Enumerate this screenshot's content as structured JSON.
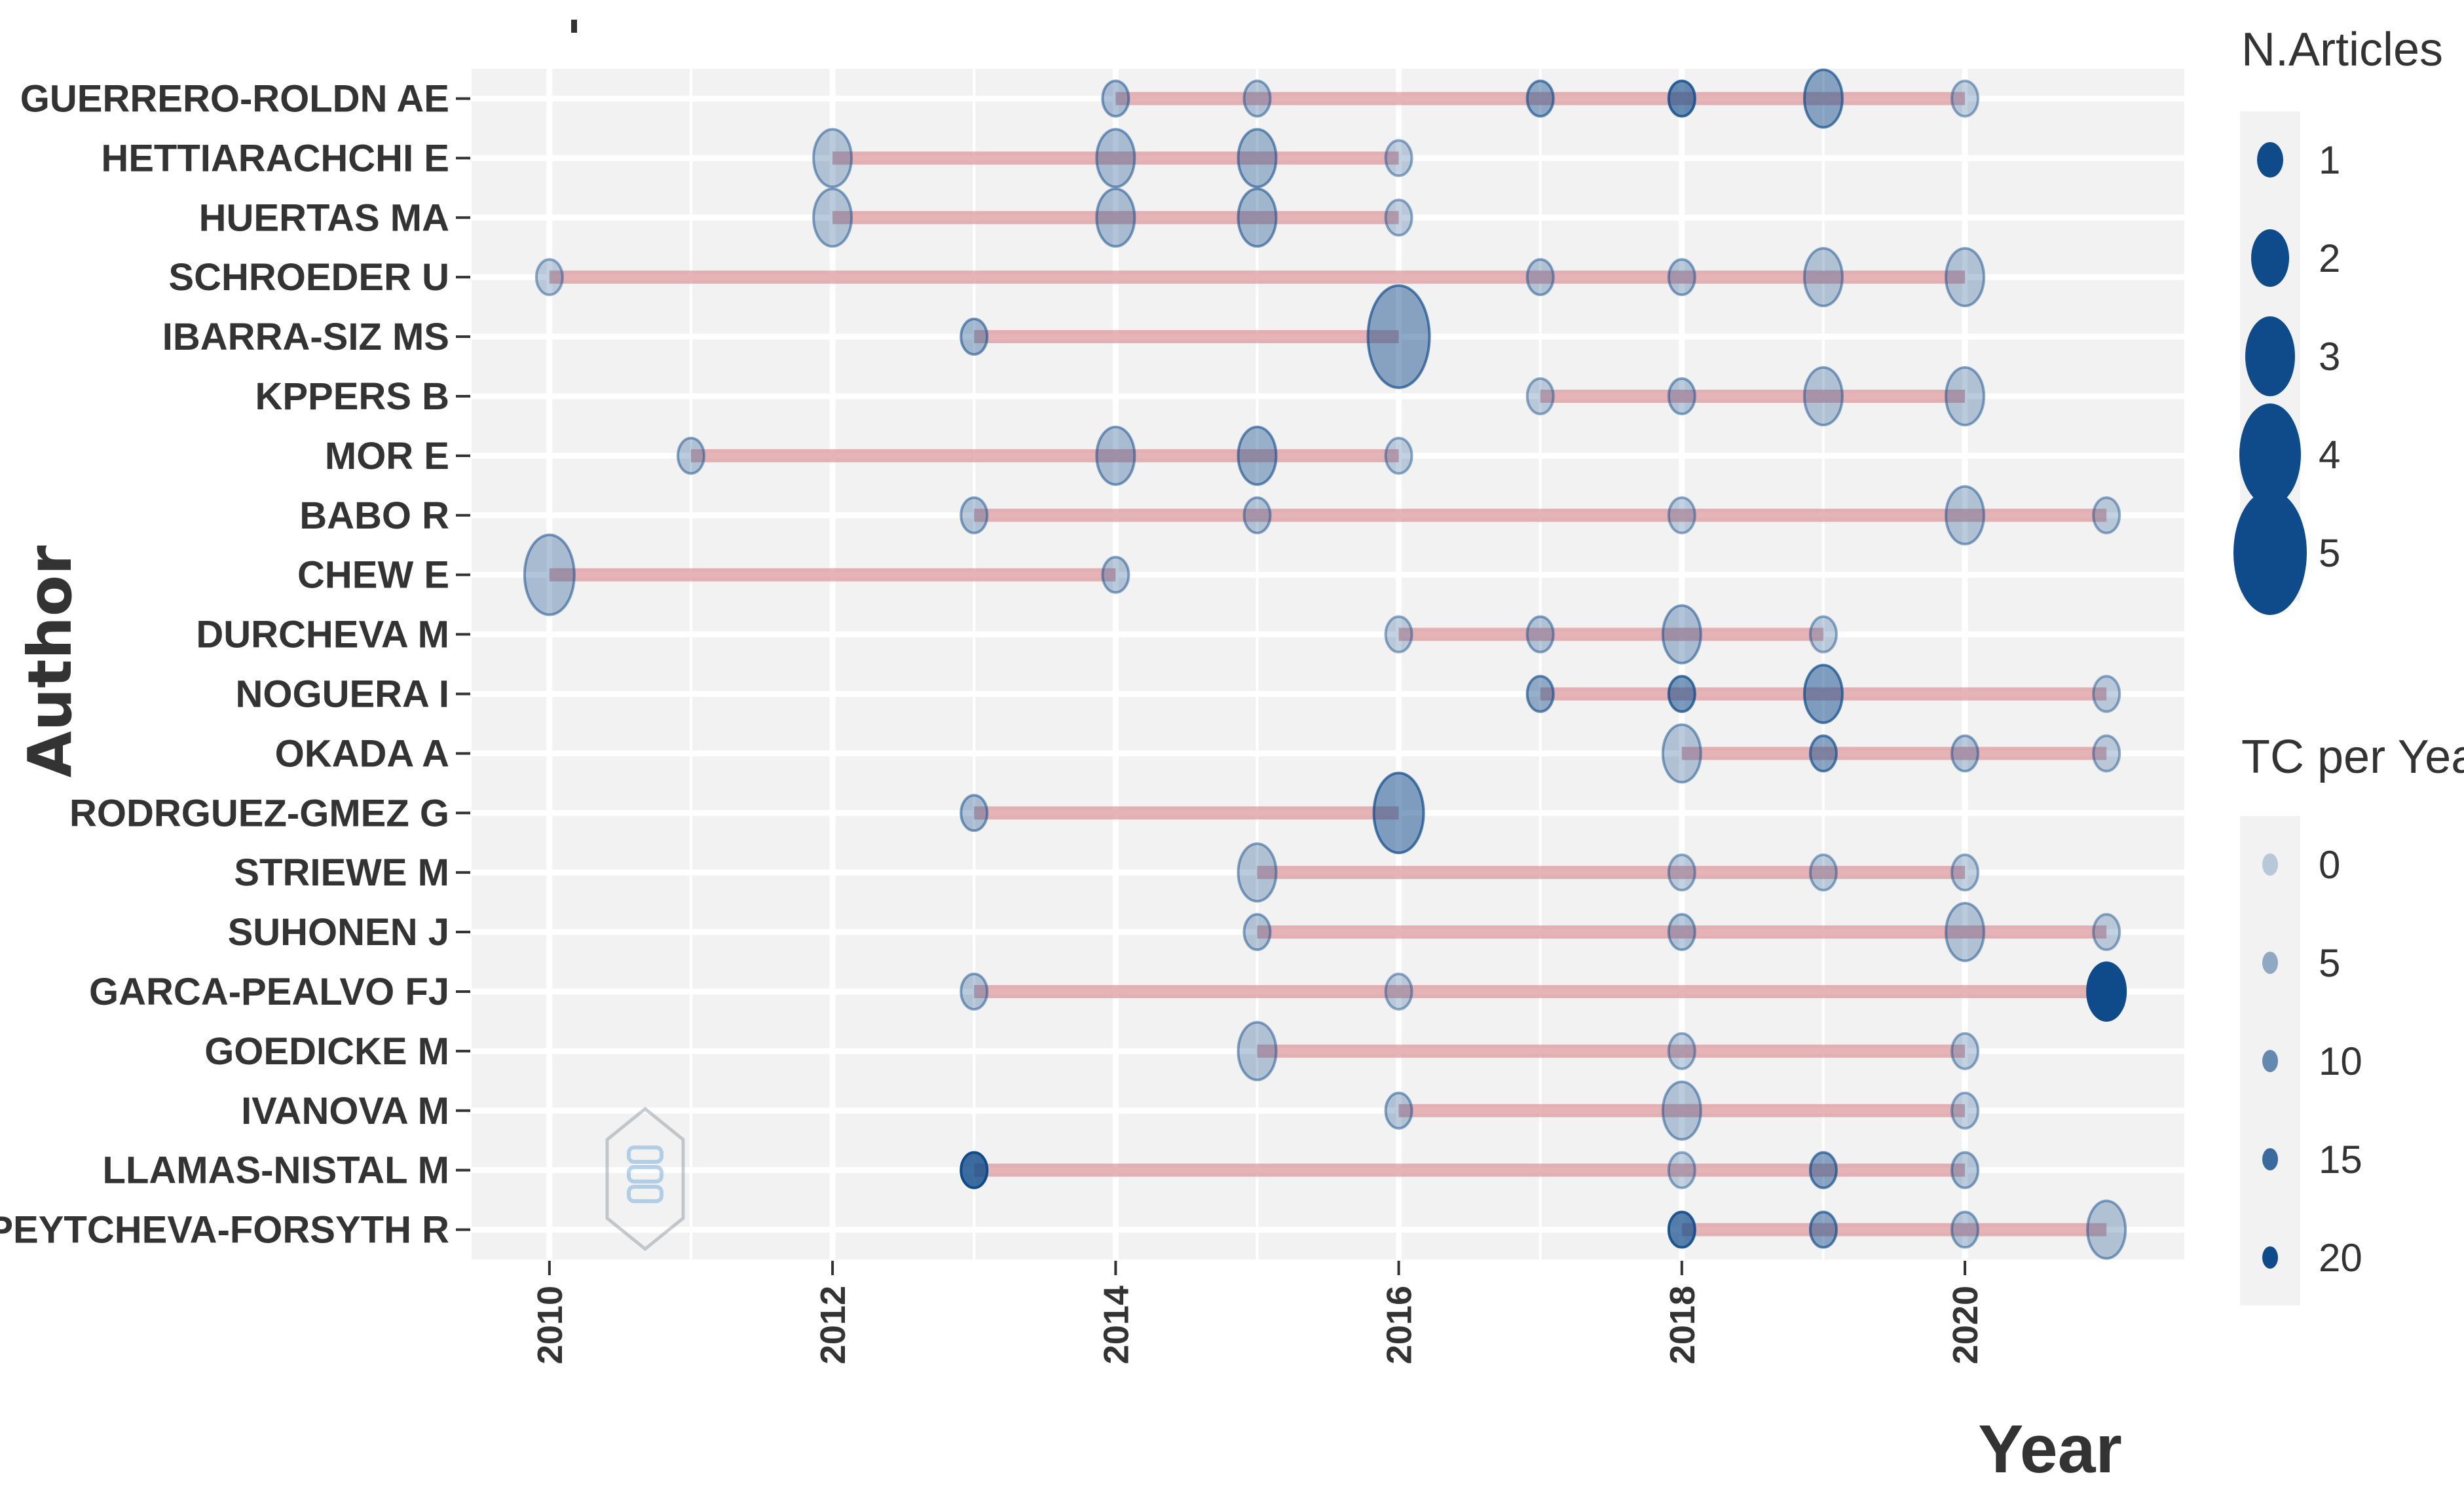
{
  "chart_data": {
    "type": "scatter",
    "xlabel": "Year",
    "ylabel": "Author",
    "xlim": [
      2009.45,
      2021.55
    ],
    "x_ticks": [
      2010,
      2012,
      2014,
      2016,
      2018,
      2020
    ],
    "x_tick_labels": [
      "2010",
      "2012",
      "2014",
      "2016",
      "2018",
      "2020"
    ],
    "grid": true,
    "authors": [
      {
        "name": "GUERRERO-ROLDN AE",
        "start": 2014,
        "end": 2020,
        "points": [
          {
            "year": 2014,
            "articles": 1,
            "tc": 2
          },
          {
            "year": 2015,
            "articles": 1,
            "tc": 1
          },
          {
            "year": 2017,
            "articles": 1,
            "tc": 5
          },
          {
            "year": 2018,
            "articles": 1,
            "tc": 10
          },
          {
            "year": 2019,
            "articles": 2,
            "tc": 6
          },
          {
            "year": 2020,
            "articles": 1,
            "tc": 0
          }
        ]
      },
      {
        "name": "HETTIARACHCHI E",
        "start": 2012,
        "end": 2016,
        "points": [
          {
            "year": 2012,
            "articles": 2,
            "tc": 1
          },
          {
            "year": 2014,
            "articles": 2,
            "tc": 2
          },
          {
            "year": 2015,
            "articles": 2,
            "tc": 3
          },
          {
            "year": 2016,
            "articles": 1,
            "tc": 0
          }
        ]
      },
      {
        "name": "HUERTAS MA",
        "start": 2012,
        "end": 2016,
        "points": [
          {
            "year": 2012,
            "articles": 2,
            "tc": 1
          },
          {
            "year": 2014,
            "articles": 2,
            "tc": 2
          },
          {
            "year": 2015,
            "articles": 2,
            "tc": 3
          },
          {
            "year": 2016,
            "articles": 1,
            "tc": 0
          }
        ]
      },
      {
        "name": "SCHROEDER U",
        "start": 2010,
        "end": 2020,
        "points": [
          {
            "year": 2010,
            "articles": 1,
            "tc": 0
          },
          {
            "year": 2017,
            "articles": 1,
            "tc": 1
          },
          {
            "year": 2018,
            "articles": 1,
            "tc": 1
          },
          {
            "year": 2019,
            "articles": 2,
            "tc": 1
          },
          {
            "year": 2020,
            "articles": 2,
            "tc": 1
          }
        ]
      },
      {
        "name": "IBARRA-SIZ MS",
        "start": 2013,
        "end": 2016,
        "points": [
          {
            "year": 2013,
            "articles": 1,
            "tc": 3
          },
          {
            "year": 2016,
            "articles": 4,
            "tc": 6
          }
        ]
      },
      {
        "name": "KPPERS B",
        "start": 2017,
        "end": 2020,
        "points": [
          {
            "year": 2017,
            "articles": 1,
            "tc": 0
          },
          {
            "year": 2018,
            "articles": 1,
            "tc": 1
          },
          {
            "year": 2019,
            "articles": 2,
            "tc": 1
          },
          {
            "year": 2020,
            "articles": 2,
            "tc": 1
          }
        ]
      },
      {
        "name": "MOR E",
        "start": 2011,
        "end": 2016,
        "points": [
          {
            "year": 2011,
            "articles": 1,
            "tc": 1
          },
          {
            "year": 2014,
            "articles": 2,
            "tc": 2
          },
          {
            "year": 2015,
            "articles": 2,
            "tc": 4
          },
          {
            "year": 2016,
            "articles": 1,
            "tc": 0
          }
        ]
      },
      {
        "name": "BABO R",
        "start": 2013,
        "end": 2021,
        "points": [
          {
            "year": 2013,
            "articles": 1,
            "tc": 1
          },
          {
            "year": 2015,
            "articles": 1,
            "tc": 1
          },
          {
            "year": 2018,
            "articles": 1,
            "tc": 0
          },
          {
            "year": 2020,
            "articles": 2,
            "tc": 1
          },
          {
            "year": 2021,
            "articles": 1,
            "tc": 0
          }
        ]
      },
      {
        "name": "CHEW E",
        "start": 2010,
        "end": 2014,
        "points": [
          {
            "year": 2010,
            "articles": 3,
            "tc": 2
          },
          {
            "year": 2014,
            "articles": 1,
            "tc": 1
          }
        ]
      },
      {
        "name": "DURCHEVA M",
        "start": 2016,
        "end": 2019,
        "points": [
          {
            "year": 2016,
            "articles": 1,
            "tc": 0
          },
          {
            "year": 2017,
            "articles": 1,
            "tc": 1
          },
          {
            "year": 2018,
            "articles": 2,
            "tc": 2
          },
          {
            "year": 2019,
            "articles": 1,
            "tc": 0
          }
        ]
      },
      {
        "name": "NOGUERA I",
        "start": 2017,
        "end": 2021,
        "points": [
          {
            "year": 2017,
            "articles": 1,
            "tc": 5
          },
          {
            "year": 2018,
            "articles": 1,
            "tc": 8
          },
          {
            "year": 2019,
            "articles": 2,
            "tc": 7
          },
          {
            "year": 2021,
            "articles": 1,
            "tc": 0
          }
        ]
      },
      {
        "name": "OKADA A",
        "start": 2018,
        "end": 2021,
        "points": [
          {
            "year": 2018,
            "articles": 2,
            "tc": 1
          },
          {
            "year": 2019,
            "articles": 1,
            "tc": 6
          },
          {
            "year": 2020,
            "articles": 1,
            "tc": 1
          },
          {
            "year": 2021,
            "articles": 1,
            "tc": 0
          }
        ]
      },
      {
        "name": "RODRGUEZ-GMEZ G",
        "start": 2013,
        "end": 2016,
        "points": [
          {
            "year": 2013,
            "articles": 1,
            "tc": 2
          },
          {
            "year": 2016,
            "articles": 3,
            "tc": 7
          }
        ]
      },
      {
        "name": "STRIEWE M",
        "start": 2015,
        "end": 2020,
        "points": [
          {
            "year": 2015,
            "articles": 2,
            "tc": 1
          },
          {
            "year": 2018,
            "articles": 1,
            "tc": 0
          },
          {
            "year": 2019,
            "articles": 1,
            "tc": 0
          },
          {
            "year": 2020,
            "articles": 1,
            "tc": 0
          }
        ]
      },
      {
        "name": "SUHONEN J",
        "start": 2015,
        "end": 2021,
        "points": [
          {
            "year": 2015,
            "articles": 1,
            "tc": 1
          },
          {
            "year": 2018,
            "articles": 1,
            "tc": 1
          },
          {
            "year": 2020,
            "articles": 2,
            "tc": 1
          },
          {
            "year": 2021,
            "articles": 1,
            "tc": 0
          }
        ]
      },
      {
        "name": "GARCA-PEALVO FJ",
        "start": 2013,
        "end": 2021,
        "points": [
          {
            "year": 2013,
            "articles": 1,
            "tc": 1
          },
          {
            "year": 2016,
            "articles": 1,
            "tc": 0
          },
          {
            "year": 2021,
            "articles": 2,
            "tc": 20
          }
        ]
      },
      {
        "name": "GOEDICKE M",
        "start": 2015,
        "end": 2020,
        "points": [
          {
            "year": 2015,
            "articles": 2,
            "tc": 1
          },
          {
            "year": 2018,
            "articles": 1,
            "tc": 0
          },
          {
            "year": 2020,
            "articles": 1,
            "tc": 0
          }
        ]
      },
      {
        "name": "IVANOVA M",
        "start": 2016,
        "end": 2020,
        "points": [
          {
            "year": 2016,
            "articles": 1,
            "tc": 1
          },
          {
            "year": 2018,
            "articles": 2,
            "tc": 1
          },
          {
            "year": 2020,
            "articles": 1,
            "tc": 0
          }
        ]
      },
      {
        "name": "LLAMAS-NISTAL M",
        "start": 2013,
        "end": 2020,
        "points": [
          {
            "year": 2013,
            "articles": 1,
            "tc": 15
          },
          {
            "year": 2018,
            "articles": 1,
            "tc": 0
          },
          {
            "year": 2019,
            "articles": 1,
            "tc": 6
          },
          {
            "year": 2020,
            "articles": 1,
            "tc": 1
          }
        ]
      },
      {
        "name": "PEYTCHEVA-FORSYTH R",
        "start": 2018,
        "end": 2021,
        "points": [
          {
            "year": 2018,
            "articles": 1,
            "tc": 12
          },
          {
            "year": 2019,
            "articles": 1,
            "tc": 6
          },
          {
            "year": 2020,
            "articles": 1,
            "tc": 1
          },
          {
            "year": 2021,
            "articles": 2,
            "tc": 1
          }
        ]
      }
    ],
    "legends": {
      "size": {
        "title": "N.Articles",
        "values": [
          1,
          2,
          3,
          4,
          5
        ]
      },
      "alpha": {
        "title": "TC per Year",
        "values": [
          0,
          5,
          10,
          15,
          20
        ]
      }
    },
    "colors": {
      "point": "#0f4a8a",
      "segment": "#d98a8f",
      "panel": "#f2f2f2",
      "legend_key": "#f2f2f2"
    }
  }
}
